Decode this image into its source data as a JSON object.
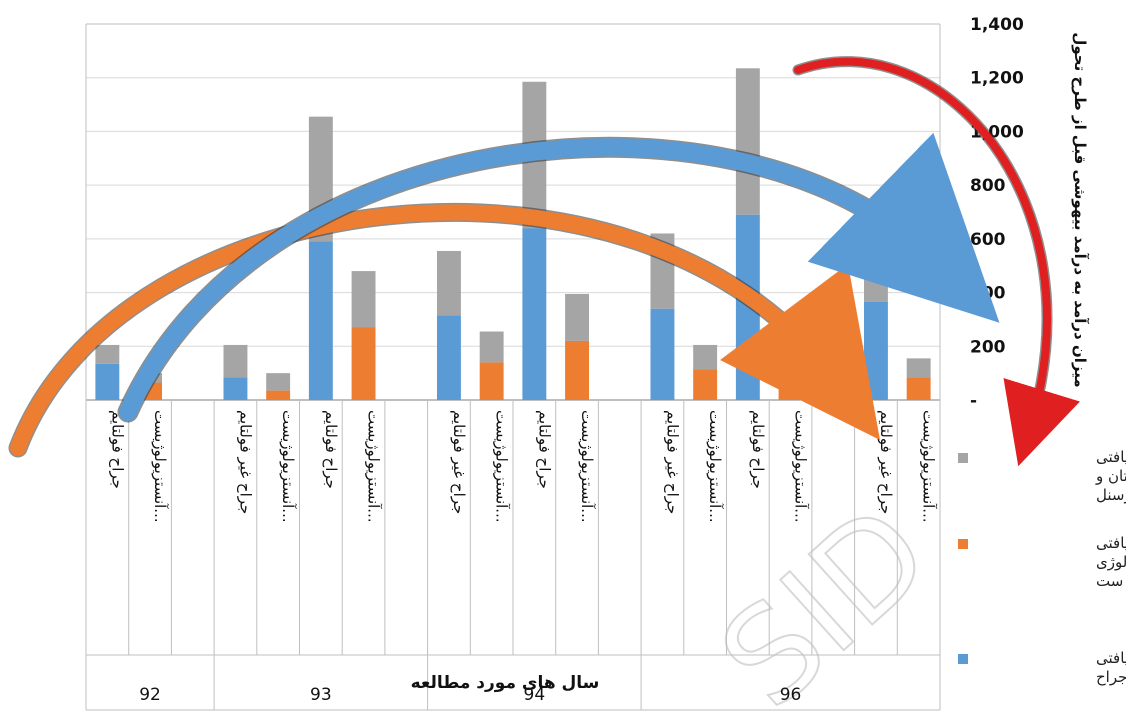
{
  "chart_data": {
    "type": "bar",
    "stacked": true,
    "xlabel": "سال های مورد مطالعه",
    "ylabel": "میزان درآمد به درآمد بیهوشی قبل از طرح تحول",
    "ylim": [
      0,
      1400
    ],
    "yticks": [
      "-",
      "200",
      "400",
      "600",
      "800",
      "1,000",
      "1,200",
      "1,400"
    ],
    "grid": true,
    "legend_position": "right",
    "groups": [
      {
        "year": "92",
        "categories": [
          "جراح فولتایم",
          "آنستزیولوژیست...",
          ""
        ]
      },
      {
        "year": "93",
        "categories": [
          "جراح غیر فولتایم",
          "آنستزیولوژیست...",
          "جراح فولتایم",
          "آنستزیولوژیست...",
          ""
        ]
      },
      {
        "year": "94",
        "categories": [
          "جراح غیر فولتایم",
          "آنستزیولوژیست...",
          "جراح فولتایم",
          "آنستزیولوژیست...",
          ""
        ]
      },
      {
        "year": "96",
        "categories": [
          "جراح غیر فولتایم",
          "آنستزیولوژیست...",
          "جراح فولتایم",
          "آنستزیولوژیست...",
          "",
          "جراح غیر فولتایم",
          "آنستزیولوژیست..."
        ]
      }
    ],
    "series": [
      {
        "name": "دریافتی جراح",
        "color": "#5b9bd5",
        "values": [
          135,
          0,
          0,
          85,
          0,
          590,
          0,
          0,
          315,
          0,
          640,
          0,
          0,
          340,
          0,
          690,
          0,
          0,
          365,
          0
        ]
      },
      {
        "name": "دریافتی آنستزیولوژیست",
        "color": "#ed7d31",
        "values": [
          0,
          65,
          0,
          0,
          35,
          0,
          270,
          0,
          0,
          140,
          0,
          220,
          0,
          0,
          115,
          0,
          160,
          0,
          0,
          85
        ]
      },
      {
        "name": "دریافتی بیمارستان و پرسنل",
        "color": "#a5a5a5",
        "values": [
          70,
          35,
          0,
          120,
          65,
          465,
          210,
          0,
          240,
          115,
          545,
          175,
          0,
          280,
          90,
          545,
          130,
          0,
          285,
          70
        ]
      }
    ],
    "annotations": [
      {
        "type": "curved-arrow",
        "color": "#ed7d31",
        "description": "orange arrow"
      },
      {
        "type": "curved-arrow",
        "color": "#5b9bd5",
        "description": "blue arrow"
      },
      {
        "type": "curved-arrow",
        "color": "#e02020",
        "description": "red arrow"
      }
    ]
  },
  "legend": [
    {
      "label": "دریافتی بیمارستان و پرسنل",
      "color": "#a5a5a5"
    },
    {
      "label": "دریافتی آنستزیولوژیست",
      "color": "#ed7d31"
    },
    {
      "label": "دریافتی جراح",
      "color": "#5b9bd5"
    }
  ],
  "watermark": "SID"
}
